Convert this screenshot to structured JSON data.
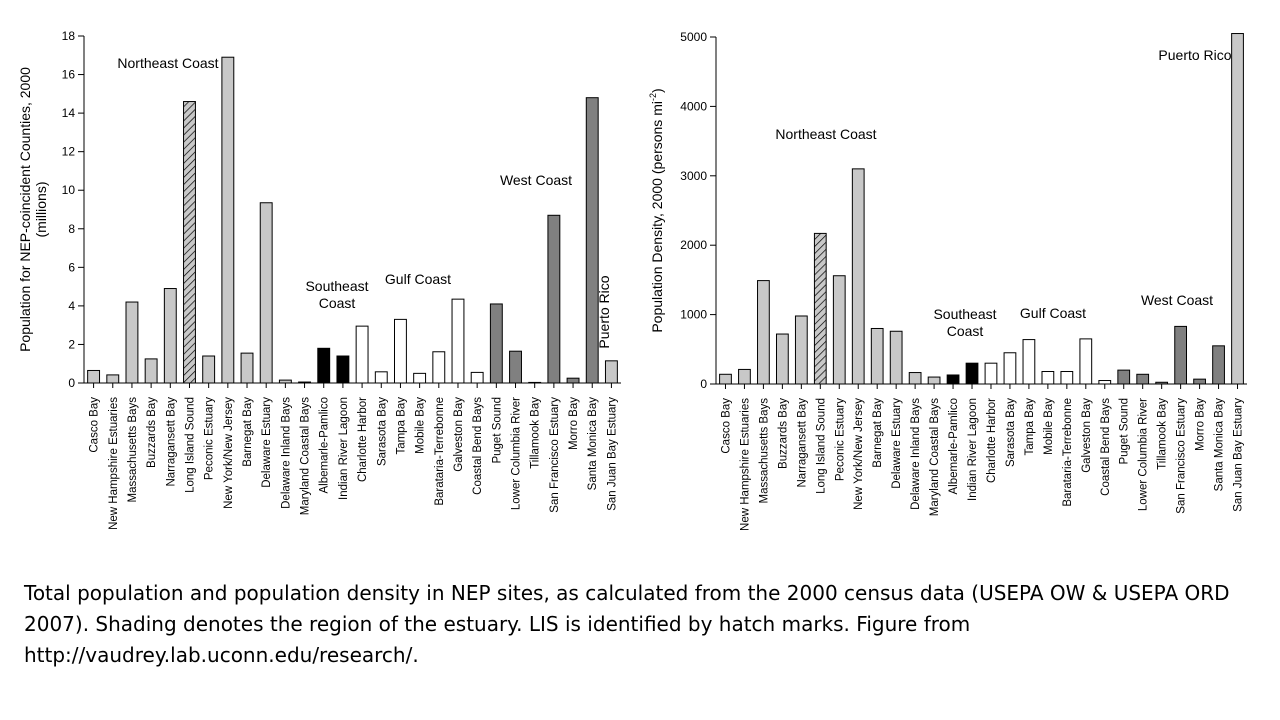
{
  "chart_data": [
    {
      "type": "bar",
      "ylabel_lines": [
        "Population for NEP-coincident Counties, 2000",
        "(millions)"
      ],
      "ylim": [
        0,
        18
      ],
      "yticks": [
        0,
        2,
        4,
        6,
        8,
        10,
        12,
        14,
        16,
        18
      ],
      "categories": [
        "Casco Bay",
        "New Hampshire Estuaries",
        "Massachusetts Bays",
        "Buzzards Bay",
        "Narragansett Bay",
        "Long Island Sound",
        "Peconic Estuary",
        "New York/New Jersey",
        "Barnegat Bay",
        "Delaware Estuary",
        "Delaware Inland Bays",
        "Maryland Coastal Bays",
        "Albemarle-Pamlico",
        "Indian River Lagoon",
        "Charlotte Harbor",
        "Sarasota Bay",
        "Tampa Bay",
        "Mobile Bay",
        "Barataria-Terrebonne",
        "Galveston Bay",
        "Coastal Bend Bays",
        "Puget Sound",
        "Lower Columbia River",
        "Tillamook Bay",
        "San Francisco Estuary",
        "Morro Bay",
        "Santa Monica Bay",
        "San Juan Bay Estuary"
      ],
      "values": [
        0.65,
        0.42,
        4.2,
        1.25,
        4.9,
        14.6,
        1.4,
        16.9,
        1.55,
        9.35,
        0.15,
        0.05,
        1.8,
        1.4,
        2.95,
        0.58,
        3.3,
        0.5,
        1.62,
        4.35,
        0.55,
        4.1,
        1.65,
        0.03,
        8.7,
        0.25,
        14.8,
        1.15
      ],
      "region_labels": [
        {
          "id": "ne",
          "lines": [
            "Northeast Coast"
          ]
        },
        {
          "id": "se",
          "lines": [
            "Southeast",
            "Coast"
          ]
        },
        {
          "id": "gulf",
          "lines": [
            "Gulf Coast"
          ]
        },
        {
          "id": "west",
          "lines": [
            "West Coast"
          ]
        },
        {
          "id": "pr",
          "lines": [
            "Puerto Rico"
          ],
          "vertical": true
        }
      ]
    },
    {
      "type": "bar",
      "ylabel_main": "Population Density, 2000 (persons mi",
      "ylabel_sup": "-2",
      "ylabel_end": ")",
      "ylim": [
        0,
        5000
      ],
      "yticks": [
        0,
        1000,
        2000,
        3000,
        4000,
        5000
      ],
      "categories": [
        "Casco Bay",
        "New Hampshire Estuaries",
        "Massachusetts Bays",
        "Buzzards Bay",
        "Narragansett Bay",
        "Long Island Sound",
        "Peconic Estuary",
        "New York/New Jersey",
        "Barnegat Bay",
        "Delaware Estuary",
        "Delaware Inland Bays",
        "Maryland Coastal Bays",
        "Albemarle-Pamlico",
        "Indian River Lagoon",
        "Charlotte Harbor",
        "Sarasota Bay",
        "Tampa Bay",
        "Mobile Bay",
        "Barataria-Terrebonne",
        "Galveston Bay",
        "Coastal Bend Bays",
        "Puget Sound",
        "Lower Columbia River",
        "Tillamook Bay",
        "San Francisco Estuary",
        "Morro Bay",
        "Santa Monica Bay",
        "San Juan Bay Estuary"
      ],
      "values": [
        140,
        210,
        1490,
        720,
        980,
        2170,
        1560,
        3100,
        800,
        760,
        165,
        100,
        130,
        300,
        300,
        450,
        640,
        180,
        180,
        650,
        50,
        200,
        140,
        25,
        830,
        70,
        550,
        5050
      ],
      "region_labels": [
        {
          "id": "ne",
          "lines": [
            "Northeast Coast"
          ]
        },
        {
          "id": "se",
          "lines": [
            "Southeast",
            "Coast"
          ]
        },
        {
          "id": "gulf",
          "lines": [
            "Gulf Coast"
          ]
        },
        {
          "id": "west",
          "lines": [
            "West Coast"
          ]
        },
        {
          "id": "pr",
          "lines": [
            "Puerto Rico"
          ],
          "vertical": false
        }
      ]
    }
  ],
  "regions_by_bar": [
    "ne",
    "ne",
    "ne",
    "ne",
    "ne",
    "lis",
    "ne",
    "ne",
    "ne",
    "ne",
    "ne",
    "ne",
    "se",
    "se",
    "gulf",
    "gulf",
    "gulf",
    "gulf",
    "gulf",
    "gulf",
    "gulf",
    "west",
    "west",
    "west",
    "west",
    "west",
    "west",
    "pr"
  ],
  "region_colors": {
    "ne": "#c8c8c8",
    "lis": "#c8c8c8",
    "se": "#000000",
    "gulf": "#ffffff",
    "west": "#808080",
    "pr": "#c8c8c8"
  },
  "caption": "Total population and population density in NEP sites, as calculated from the 2000 census data (USEPA OW & USEPA ORD 2007). Shading denotes the region of the estuary. LIS is identified by hatch marks. Figure from http://vaudrey.lab.uconn.edu/research/."
}
